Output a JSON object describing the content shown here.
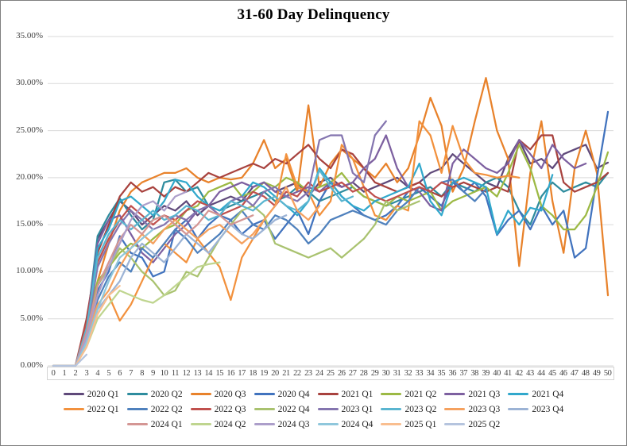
{
  "chart_data": {
    "type": "line",
    "title": "31-60 Day Delinquency",
    "xlabel": "",
    "ylabel": "",
    "ylim": [
      0,
      35
    ],
    "y_tick_step_percent": 5,
    "y_tick_labels": [
      "35.00%",
      "30.00%",
      "25.00%",
      "20.00%",
      "15.00%",
      "10.00%",
      "5.00%",
      "0.00%"
    ],
    "grid": true,
    "gridline_color": "#d9d9d9",
    "legend_position": "bottom",
    "legend_rows": [
      8,
      8,
      6
    ],
    "categories": [
      0,
      1,
      2,
      3,
      4,
      5,
      6,
      7,
      8,
      9,
      10,
      11,
      12,
      13,
      14,
      15,
      16,
      17,
      18,
      19,
      20,
      21,
      22,
      23,
      24,
      25,
      26,
      27,
      28,
      29,
      30,
      31,
      32,
      33,
      34,
      35,
      36,
      37,
      38,
      39,
      40,
      41,
      42,
      43,
      44,
      45,
      46,
      47,
      48,
      49,
      50
    ],
    "series": [
      {
        "name": "2020 Q1",
        "color": "#5F497A",
        "values": [
          0,
          0,
          0,
          3.5,
          13.5,
          15.5,
          17.5,
          16.5,
          15,
          16,
          17,
          16.5,
          17.5,
          16,
          17,
          17.5,
          18,
          17.5,
          19,
          19.5,
          18.5,
          19,
          19.5,
          18,
          19.5,
          20,
          19,
          19.5,
          18.5,
          19,
          19.5,
          20,
          19,
          19.5,
          20.5,
          21,
          22.5,
          21.5,
          20.5,
          19.5,
          19,
          22,
          24,
          21.5,
          22,
          21,
          22.5,
          23,
          23.5,
          21,
          21.6
        ]
      },
      {
        "name": "2020 Q2",
        "color": "#2E8C9E",
        "values": [
          0,
          0,
          0,
          4,
          13.8,
          16,
          17.8,
          16,
          14.5,
          15.5,
          19.5,
          19.8,
          18.5,
          19,
          17,
          16.5,
          17,
          17.5,
          18,
          18.5,
          17.5,
          18,
          19,
          18.5,
          17.5,
          18,
          18.5,
          19,
          18,
          17.5,
          17,
          17.5,
          18,
          18.5,
          19,
          18,
          19.5,
          19,
          18.5,
          19.5,
          20,
          19,
          16.5,
          15,
          18,
          19.5,
          18.5,
          19,
          19.5,
          19,
          20.5
        ]
      },
      {
        "name": "2020 Q3",
        "color": "#E8822B",
        "values": [
          0,
          0,
          0,
          4.5,
          9,
          13,
          16.5,
          18.5,
          19.5,
          20,
          20.5,
          20.5,
          21,
          20,
          19.5,
          20,
          19.8,
          20,
          21.5,
          24,
          21,
          22,
          18.5,
          27.7,
          19,
          21.5,
          23,
          22,
          21,
          20,
          21.5,
          19.5,
          21,
          24.5,
          28.5,
          25.5,
          18.5,
          21,
          26,
          30.6,
          25,
          22,
          10.6,
          20.5,
          26,
          17.5,
          12,
          21,
          25,
          20.5,
          7.5
        ]
      },
      {
        "name": "2020 Q4",
        "color": "#4173BE",
        "values": [
          0,
          0,
          0,
          3,
          8,
          10,
          13.8,
          12,
          11.5,
          9.5,
          10,
          14.5,
          15.5,
          13.5,
          15,
          16,
          15.5,
          14,
          15,
          15.5,
          13.5,
          15,
          16.5,
          14,
          17.5,
          19.5,
          18,
          17,
          16,
          15.5,
          16,
          17,
          18.5,
          19,
          18,
          17,
          19.5,
          18.5,
          19.5,
          18,
          13.9,
          15.5,
          16.5,
          14.5,
          17,
          15,
          16.5,
          11.5,
          12.5,
          20,
          27
        ]
      },
      {
        "name": "2021 Q1",
        "color": "#A8423E",
        "values": [
          0,
          0,
          0,
          5,
          12,
          15,
          18,
          19.5,
          18.5,
          19,
          18,
          19,
          18.5,
          19.5,
          20.5,
          20,
          20.5,
          21,
          21.5,
          21,
          22,
          21.5,
          22.5,
          23.5,
          22,
          21,
          23,
          22.5,
          21,
          19.5,
          19,
          18.5,
          19,
          19.5,
          18.5,
          18,
          19,
          19.5,
          19,
          18.5,
          19,
          18.5,
          24,
          23,
          24.5,
          24.5,
          19.5,
          18.5,
          19,
          19.5,
          20.5
        ]
      },
      {
        "name": "2021 Q2",
        "color": "#9CB944",
        "values": [
          0,
          0,
          0,
          3.5,
          9,
          10.5,
          12,
          13,
          12.5,
          13.5,
          14.5,
          15,
          16.5,
          17,
          18.5,
          19,
          19.5,
          18,
          18.5,
          19.5,
          19,
          20,
          19.5,
          18.5,
          19,
          19.5,
          20.5,
          19,
          18,
          17.5,
          17,
          18,
          17.5,
          18,
          18.5,
          16.5,
          17.5,
          18,
          18.5,
          19,
          18,
          20.5,
          23.5,
          21,
          17,
          16,
          14.5,
          14.5,
          16,
          19,
          22.7
        ]
      },
      {
        "name": "2021 Q3",
        "color": "#7D60A0",
        "values": [
          0,
          0,
          0,
          4,
          13,
          15.5,
          16,
          14,
          12,
          11,
          12.5,
          14,
          15,
          16.5,
          17,
          18.5,
          19,
          19.5,
          19,
          19.5,
          18.5,
          18,
          18.5,
          19,
          18.5,
          19.5,
          19,
          19.5,
          21,
          22,
          24.5,
          21,
          19,
          18.5,
          17,
          16.5,
          21.5,
          23,
          22,
          21,
          20.5,
          21.5,
          24,
          22.5,
          21,
          23.5,
          22,
          21,
          21.5
        ]
      },
      {
        "name": "2021 Q4",
        "color": "#31A8CC",
        "values": [
          0,
          0,
          0,
          3.5,
          12.5,
          14.5,
          17.5,
          18,
          17,
          16,
          17.5,
          19.8,
          19.5,
          18,
          17,
          16.5,
          17.5,
          18,
          19.5,
          19,
          18,
          17,
          16,
          17.5,
          21,
          19.5,
          18,
          17,
          16.5,
          17.5,
          18,
          18.5,
          19,
          21.5,
          17.5,
          16,
          19.5,
          20,
          19.5,
          19,
          14,
          16.5,
          15,
          16.8,
          16.5,
          20.3
        ]
      },
      {
        "name": "2022 Q1",
        "color": "#F2913D",
        "values": [
          0,
          0,
          0,
          2.5,
          5.5,
          7.5,
          4.8,
          6.5,
          9,
          11.5,
          13,
          12,
          11,
          13.5,
          12,
          10.5,
          7,
          11.5,
          13.5,
          15.5,
          17,
          22.5,
          19,
          18.5,
          16,
          17.5,
          23.5,
          22,
          19,
          16,
          15.5,
          17,
          16.5,
          26,
          24.5,
          20.5,
          25.5,
          22,
          20.5,
          20.3,
          20,
          20.2,
          20
        ]
      },
      {
        "name": "2022 Q2",
        "color": "#4F81BD",
        "values": [
          0,
          0,
          0,
          3,
          7,
          9.5,
          11,
          10,
          12.5,
          11.5,
          13,
          14.5,
          13.5,
          12,
          13,
          14,
          15.5,
          16.5,
          15,
          14.5,
          16,
          15.5,
          14.5,
          13,
          14,
          15.5,
          16,
          16.5,
          16,
          15.5,
          15,
          16.5,
          17.5,
          19,
          18.5,
          19.5,
          19.8,
          18.5,
          17.5,
          18.8
        ]
      },
      {
        "name": "2022 Q3",
        "color": "#C0504D",
        "values": [
          0,
          0,
          0,
          4.5,
          11,
          13.5,
          15.5,
          17,
          16,
          15,
          16,
          15.5,
          16.5,
          17.5,
          17,
          16,
          16.5,
          17,
          18.5,
          18,
          17,
          18.5,
          18,
          19.5,
          18.5,
          19,
          19.5,
          18.5,
          19,
          18,
          17.5,
          18,
          18.5,
          19,
          18.5,
          19.5,
          19
        ]
      },
      {
        "name": "2022 Q4",
        "color": "#A9C26F",
        "values": [
          0,
          0,
          0,
          3,
          8.5,
          10.5,
          12.5,
          11.5,
          10,
          9,
          7.5,
          8,
          10,
          9.5,
          11.5,
          13.5,
          15,
          16.5,
          17,
          16,
          13,
          12.5,
          12,
          11.5,
          12,
          12.5,
          11.5,
          12.5,
          13.5,
          15,
          17.5,
          16.5,
          17,
          17.5
        ]
      },
      {
        "name": "2023 Q1",
        "color": "#8475AF",
        "values": [
          0,
          0,
          0,
          3.5,
          10.5,
          13,
          15,
          16.5,
          15.5,
          14.5,
          15,
          16,
          15.5,
          16.5,
          17,
          16,
          17.5,
          18,
          17,
          18.5,
          19,
          18,
          17.5,
          18.5,
          24,
          24.5,
          24.5,
          20.5,
          19.5,
          24.5,
          26
        ]
      },
      {
        "name": "2023 Q2",
        "color": "#5AB5D0",
        "values": [
          0,
          0,
          0,
          4,
          11.5,
          14,
          15.5,
          14.5,
          15.5,
          16.5,
          15.5,
          16,
          17,
          16.5,
          15.5,
          16,
          17.5,
          17,
          16.5,
          17.5,
          18,
          17,
          16.5,
          17.5,
          20.8,
          19,
          17.5,
          18
        ]
      },
      {
        "name": "2023 Q3",
        "color": "#F5A15F",
        "values": [
          0,
          0,
          0,
          3,
          6.5,
          8,
          10.5,
          12.5,
          14,
          13,
          14.5,
          15.5,
          14.5,
          13.5,
          14.5,
          15,
          14,
          13,
          14,
          15.5,
          17,
          19,
          16.5,
          15.5,
          17
        ]
      },
      {
        "name": "2023 Q4",
        "color": "#9CB3D5",
        "values": [
          0,
          0,
          0,
          2.5,
          6,
          7.5,
          9,
          11.5,
          13,
          12,
          11,
          12.5,
          14,
          13,
          12,
          13.5,
          15,
          14,
          13.5,
          14.5,
          15.5,
          16
        ]
      },
      {
        "name": "2024 Q1",
        "color": "#D49694",
        "values": [
          0,
          0,
          0,
          3.5,
          8.5,
          11,
          13.5,
          15,
          14,
          15.5,
          16,
          15,
          14,
          15,
          16.5,
          16,
          15,
          15.5,
          16
        ]
      },
      {
        "name": "2024 Q2",
        "color": "#BFD58F",
        "values": [
          0,
          0,
          0,
          2,
          5,
          6.5,
          8,
          7.5,
          7,
          6.7,
          7.5,
          8.5,
          9.5,
          10.5,
          10.8,
          11
        ]
      },
      {
        "name": "2024 Q3",
        "color": "#AC9ECA",
        "values": [
          0,
          0,
          0,
          3,
          7.5,
          10.5,
          13,
          15.5,
          17,
          17.5,
          16.5,
          18,
          18.5
        ]
      },
      {
        "name": "2024 Q4",
        "color": "#8FC7DC",
        "values": [
          0,
          0,
          0,
          2.5,
          6,
          9,
          11.5,
          12.5,
          13.5,
          14.5
        ]
      },
      {
        "name": "2025 Q1",
        "color": "#F9BE8F",
        "values": [
          0,
          0,
          0,
          2,
          5.5,
          7.5,
          8.5
        ]
      },
      {
        "name": "2025 Q2",
        "color": "#B5C4DE",
        "values": [
          0,
          0,
          0,
          1.2
        ]
      }
    ]
  }
}
